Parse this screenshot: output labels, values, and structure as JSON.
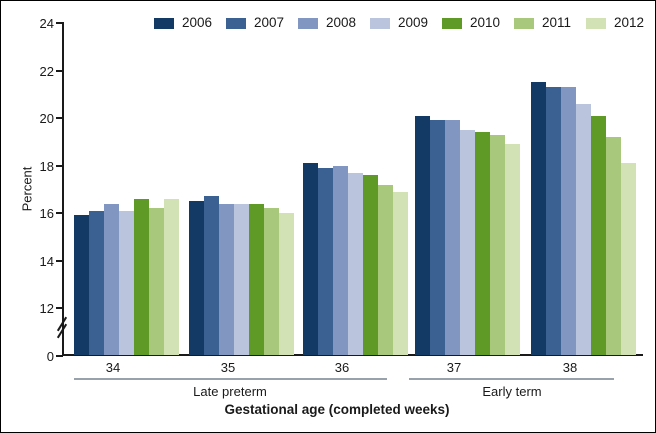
{
  "chart_data": {
    "type": "bar",
    "title": "",
    "categories": [
      "34",
      "35",
      "36",
      "37",
      "38"
    ],
    "series": [
      {
        "name": "2006",
        "color": "#123a64",
        "values": [
          15.9,
          16.5,
          18.1,
          20.1,
          21.5
        ]
      },
      {
        "name": "2007",
        "color": "#3a6191",
        "values": [
          16.1,
          16.7,
          17.9,
          19.9,
          21.3
        ]
      },
      {
        "name": "2008",
        "color": "#8196c0",
        "values": [
          16.4,
          16.4,
          18.0,
          19.9,
          21.3
        ]
      },
      {
        "name": "2009",
        "color": "#bac5dd",
        "values": [
          16.1,
          16.4,
          17.7,
          19.5,
          20.6
        ]
      },
      {
        "name": "2010",
        "color": "#5f9a27",
        "values": [
          16.6,
          16.4,
          17.6,
          19.4,
          20.1
        ]
      },
      {
        "name": "2011",
        "color": "#a8c97b",
        "values": [
          16.2,
          16.2,
          17.2,
          19.3,
          19.2
        ]
      },
      {
        "name": "2012",
        "color": "#d3e2b5",
        "values": [
          16.6,
          16.0,
          16.9,
          18.9,
          18.1
        ]
      }
    ],
    "ylabel": "Percent",
    "xlabel": "Gestational age (completed weeks)",
    "ylim": [
      0,
      24
    ],
    "yticks": [
      24,
      22,
      20,
      18,
      16,
      14,
      12,
      0
    ],
    "y_axis_break": {
      "between": [
        0,
        12
      ]
    },
    "grid": false,
    "legend_position": "top",
    "category_groups": [
      {
        "label": "Late preterm",
        "categories": [
          "34",
          "35",
          "36"
        ]
      },
      {
        "label": "Early term",
        "categories": [
          "37",
          "38"
        ]
      }
    ]
  }
}
